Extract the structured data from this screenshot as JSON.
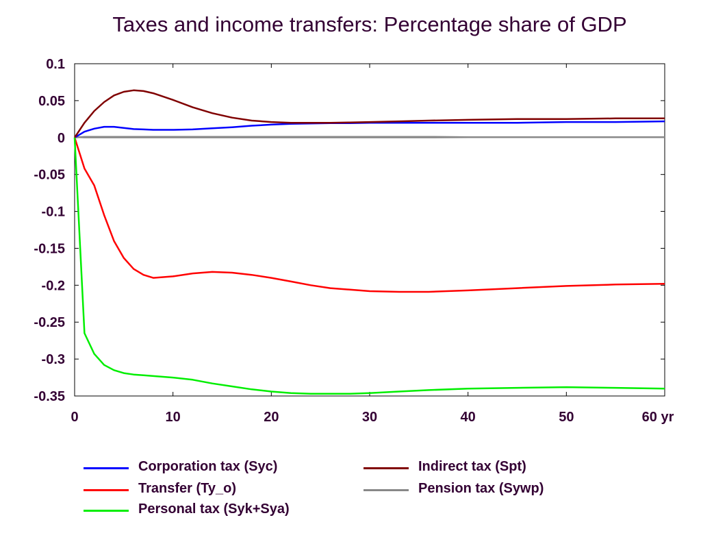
{
  "chart_data": {
    "type": "line",
    "title": "Taxes and income transfers: Percentage share of GDP",
    "xlabel": "",
    "ylabel": "",
    "xlim": [
      0,
      60
    ],
    "ylim": [
      -0.35,
      0.1
    ],
    "x_ticks": [
      "0",
      "10",
      "20",
      "30",
      "40",
      "50",
      "60 yr"
    ],
    "x_tick_values": [
      0,
      10,
      20,
      30,
      40,
      50,
      60
    ],
    "y_ticks": [
      "0.1",
      "0.05",
      "0",
      "-0.05",
      "-0.1",
      "-0.15",
      "-0.2",
      "-0.25",
      "-0.3",
      "-0.35"
    ],
    "y_tick_values": [
      0.1,
      0.05,
      0,
      -0.05,
      -0.1,
      -0.15,
      -0.2,
      -0.25,
      -0.3,
      -0.35
    ],
    "grid": false,
    "legend_position": "bottom",
    "x": [
      0,
      1,
      2,
      3,
      4,
      5,
      6,
      7,
      8,
      10,
      12,
      14,
      16,
      18,
      20,
      22,
      24,
      26,
      28,
      30,
      33,
      36,
      40,
      45,
      50,
      55,
      60
    ],
    "series": [
      {
        "name": "Corporation tax (Syc)",
        "color": "#0000ff",
        "values": [
          0,
          0.008,
          0.012,
          0.0145,
          0.0145,
          0.013,
          0.0115,
          0.011,
          0.0105,
          0.0105,
          0.011,
          0.0125,
          0.014,
          0.016,
          0.0175,
          0.0185,
          0.019,
          0.0195,
          0.0195,
          0.02,
          0.02,
          0.02,
          0.02,
          0.02,
          0.021,
          0.021,
          0.022
        ]
      },
      {
        "name": "Transfer (Ty_o)",
        "color": "#ff0000",
        "values": [
          0,
          -0.042,
          -0.065,
          -0.105,
          -0.14,
          -0.163,
          -0.178,
          -0.186,
          -0.19,
          -0.188,
          -0.184,
          -0.182,
          -0.183,
          -0.186,
          -0.19,
          -0.195,
          -0.2,
          -0.204,
          -0.206,
          -0.208,
          -0.209,
          -0.209,
          -0.207,
          -0.204,
          -0.201,
          -0.199,
          -0.198
        ]
      },
      {
        "name": "Personal tax (Syk+Sya)",
        "color": "#00ee00",
        "values": [
          0,
          -0.265,
          -0.293,
          -0.308,
          -0.315,
          -0.319,
          -0.321,
          -0.322,
          -0.323,
          -0.325,
          -0.328,
          -0.333,
          -0.337,
          -0.341,
          -0.344,
          -0.346,
          -0.347,
          -0.347,
          -0.347,
          -0.346,
          -0.344,
          -0.342,
          -0.34,
          -0.339,
          -0.338,
          -0.339,
          -0.34
        ]
      },
      {
        "name": "Indirect tax (Spt)",
        "color": "#800000",
        "values": [
          0,
          0.02,
          0.036,
          0.048,
          0.057,
          0.062,
          0.064,
          0.063,
          0.06,
          0.051,
          0.041,
          0.033,
          0.027,
          0.023,
          0.021,
          0.02,
          0.02,
          0.02,
          0.0205,
          0.021,
          0.022,
          0.023,
          0.024,
          0.025,
          0.025,
          0.026,
          0.026
        ]
      },
      {
        "name": "Pension tax (Sywp)",
        "color": "#888888",
        "values": [
          0,
          0.001,
          0.001,
          0.001,
          0.001,
          0.001,
          0.001,
          0.001,
          0.001,
          0.001,
          0.001,
          0.001,
          0.001,
          0.001,
          0.001,
          0.001,
          0.001,
          0.001,
          0.001,
          0.001,
          0.001,
          0.001,
          0.0005,
          0.0005,
          0.0005,
          0.0005,
          0.0005
        ]
      }
    ]
  }
}
